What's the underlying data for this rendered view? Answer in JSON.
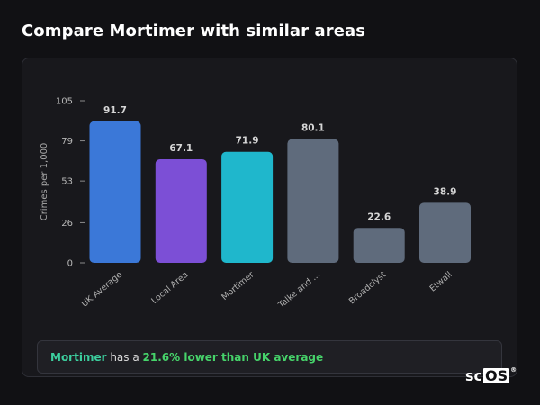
{
  "header": {
    "title": "Compare Mortimer with similar areas"
  },
  "chart_data": {
    "type": "bar",
    "categories": [
      "UK Average",
      "Local Area",
      "Mortimer",
      "Talke and ...",
      "Broadclyst",
      "Etwall"
    ],
    "values": [
      91.7,
      67.1,
      71.9,
      80.1,
      22.6,
      38.9
    ],
    "value_labels": [
      "91.7",
      "67.1",
      "71.9",
      "80.1",
      "22.6",
      "38.9"
    ],
    "colors": [
      "#3b78d8",
      "#7c4fd6",
      "#1fb7cc",
      "#5f6b7c",
      "#5f6b7c",
      "#5f6b7c"
    ],
    "ylabel": "Crimes per 1,000",
    "yticks": [
      0,
      26,
      53,
      79,
      105
    ],
    "ylim": [
      0,
      105
    ],
    "grid": false,
    "legend": "none"
  },
  "summary": {
    "area": "Mortimer",
    "text": " has a ",
    "highlight": "21.6% lower than UK average"
  },
  "brand": {
    "prefix": "sc",
    "boxed": "OS",
    "reg": "®"
  }
}
